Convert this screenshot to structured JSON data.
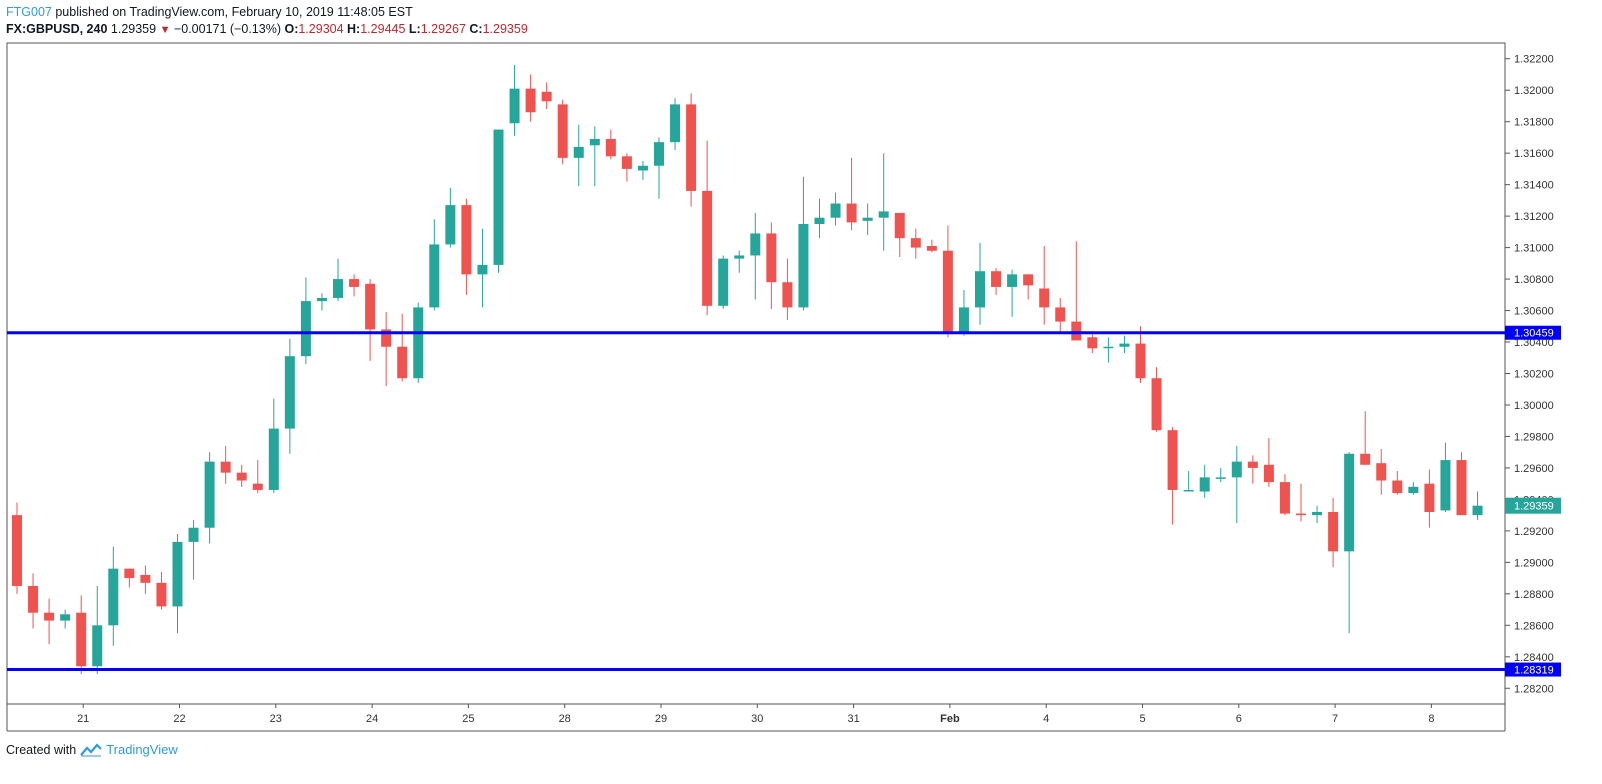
{
  "header": {
    "author": "FTG007",
    "published": "published on TradingView.com, February 10, 2019 11:48:05 EST",
    "symbol": "FX:GBPUSD, 240",
    "last": "1.29359",
    "change_arrow": "▼",
    "change": "−0.00171 (−0.13%)",
    "o_label": "O:",
    "o_value": "1.29304",
    "h_label": "H:",
    "h_value": "1.29445",
    "l_label": "L:",
    "l_value": "1.29267",
    "c_label": "C:",
    "c_value": "1.29359"
  },
  "footer": {
    "created_with": "Created with",
    "brand": "TradingView"
  },
  "colors": {
    "up": "#26a69a",
    "down": "#ef5350",
    "hline": "#0000ff",
    "axis": "#555555"
  },
  "chart_data": {
    "type": "candlestick",
    "ylim": [
      1.281,
      1.323
    ],
    "y_ticks": [
      "1.28200",
      "1.28400",
      "1.28600",
      "1.28800",
      "1.29000",
      "1.29200",
      "1.29400",
      "1.29600",
      "1.29800",
      "1.30000",
      "1.30200",
      "1.30400",
      "1.30600",
      "1.30800",
      "1.31000",
      "1.31200",
      "1.31400",
      "1.31600",
      "1.31800",
      "1.32000",
      "1.32200"
    ],
    "x_labels": [
      "21",
      "22",
      "23",
      "24",
      "25",
      "28",
      "29",
      "30",
      "31",
      "Feb",
      "4",
      "5",
      "6",
      "7",
      "8"
    ],
    "x_label_bar_index": [
      4,
      10,
      16,
      22,
      28,
      34,
      40,
      46,
      52,
      58,
      64,
      70,
      76,
      82,
      88
    ],
    "horizontal_lines": [
      {
        "value": 1.30459,
        "label": "1.30459"
      },
      {
        "value": 1.28319,
        "label": "1.28319"
      }
    ],
    "last_price_label": "1.29359",
    "candles": [
      [
        1.293,
        1.2938,
        1.288,
        1.2885
      ],
      [
        1.2885,
        1.2893,
        1.2858,
        1.2868
      ],
      [
        1.2868,
        1.2877,
        1.2848,
        1.2863
      ],
      [
        1.2863,
        1.287,
        1.2858,
        1.2867
      ],
      [
        1.2868,
        1.2879,
        1.2829,
        1.2834
      ],
      [
        1.2834,
        1.2885,
        1.2829,
        1.286
      ],
      [
        1.286,
        1.291,
        1.2847,
        1.2896
      ],
      [
        1.2896,
        1.2896,
        1.2884,
        1.289
      ],
      [
        1.2892,
        1.2898,
        1.288,
        1.2887
      ],
      [
        1.2887,
        1.2894,
        1.287,
        1.2872
      ],
      [
        1.2872,
        1.2918,
        1.2855,
        1.2913
      ],
      [
        1.2913,
        1.2927,
        1.2889,
        1.2922
      ],
      [
        1.2922,
        1.297,
        1.2912,
        1.2964
      ],
      [
        1.2964,
        1.2974,
        1.295,
        1.2957
      ],
      [
        1.2957,
        1.2962,
        1.2948,
        1.2952
      ],
      [
        1.295,
        1.2965,
        1.2944,
        1.2946
      ],
      [
        1.2946,
        1.3004,
        1.2944,
        1.2985
      ],
      [
        1.2985,
        1.3042,
        1.2969,
        1.3031
      ],
      [
        1.3031,
        1.3081,
        1.3026,
        1.3066
      ],
      [
        1.3066,
        1.3071,
        1.306,
        1.3068
      ],
      [
        1.3068,
        1.3093,
        1.3066,
        1.308
      ],
      [
        1.308,
        1.3083,
        1.3069,
        1.3075
      ],
      [
        1.3077,
        1.308,
        1.3028,
        1.3048
      ],
      [
        1.3048,
        1.3059,
        1.3012,
        1.3037
      ],
      [
        1.3037,
        1.3058,
        1.3015,
        1.3017
      ],
      [
        1.3017,
        1.3065,
        1.3014,
        1.3062
      ],
      [
        1.3062,
        1.3118,
        1.306,
        1.3102
      ],
      [
        1.3102,
        1.3138,
        1.31,
        1.3127
      ],
      [
        1.3127,
        1.3131,
        1.307,
        1.3083
      ],
      [
        1.3083,
        1.3112,
        1.3062,
        1.3089
      ],
      [
        1.3089,
        1.3175,
        1.3084,
        1.3175
      ],
      [
        1.3179,
        1.3216,
        1.3171,
        1.3201
      ],
      [
        1.3201,
        1.321,
        1.318,
        1.3186
      ],
      [
        1.3199,
        1.3205,
        1.3188,
        1.3193
      ],
      [
        1.3191,
        1.3194,
        1.3153,
        1.3157
      ],
      [
        1.3157,
        1.3178,
        1.3139,
        1.3164
      ],
      [
        1.3165,
        1.3177,
        1.3139,
        1.3169
      ],
      [
        1.3169,
        1.3175,
        1.3156,
        1.3158
      ],
      [
        1.3158,
        1.316,
        1.3142,
        1.315
      ],
      [
        1.3149,
        1.3155,
        1.3143,
        1.3152
      ],
      [
        1.3152,
        1.317,
        1.3131,
        1.3167
      ],
      [
        1.3167,
        1.3195,
        1.3162,
        1.3191
      ],
      [
        1.3191,
        1.3198,
        1.3126,
        1.3136
      ],
      [
        1.3136,
        1.3168,
        1.3057,
        1.3063
      ],
      [
        1.3063,
        1.3095,
        1.3061,
        1.3093
      ],
      [
        1.3093,
        1.3098,
        1.3084,
        1.3095
      ],
      [
        1.3095,
        1.3122,
        1.3067,
        1.3109
      ],
      [
        1.3109,
        1.3116,
        1.3061,
        1.3078
      ],
      [
        1.3078,
        1.3093,
        1.3054,
        1.3062
      ],
      [
        1.3062,
        1.3145,
        1.306,
        1.3115
      ],
      [
        1.3115,
        1.3131,
        1.3106,
        1.3119
      ],
      [
        1.3119,
        1.3135,
        1.3114,
        1.3128
      ],
      [
        1.3128,
        1.3157,
        1.3111,
        1.3116
      ],
      [
        1.3117,
        1.3128,
        1.3108,
        1.3119
      ],
      [
        1.3119,
        1.316,
        1.3098,
        1.3123
      ],
      [
        1.3122,
        1.3122,
        1.3094,
        1.3106
      ],
      [
        1.3106,
        1.3112,
        1.3093,
        1.31
      ],
      [
        1.3101,
        1.3105,
        1.3097,
        1.3098
      ],
      [
        1.3098,
        1.3114,
        1.3043,
        1.3045
      ],
      [
        1.3045,
        1.3073,
        1.3044,
        1.3062
      ],
      [
        1.3062,
        1.3103,
        1.3051,
        1.3085
      ],
      [
        1.3085,
        1.3087,
        1.307,
        1.3075
      ],
      [
        1.3075,
        1.3086,
        1.3056,
        1.3083
      ],
      [
        1.3083,
        1.3083,
        1.3067,
        1.3076
      ],
      [
        1.3074,
        1.3101,
        1.3051,
        1.3062
      ],
      [
        1.3062,
        1.3068,
        1.3046,
        1.3053
      ],
      [
        1.3053,
        1.3104,
        1.3043,
        1.3041
      ],
      [
        1.3043,
        1.3047,
        1.3033,
        1.3036
      ],
      [
        1.3037,
        1.3043,
        1.3027,
        1.3037
      ],
      [
        1.3037,
        1.3044,
        1.3033,
        1.3039
      ],
      [
        1.3039,
        1.305,
        1.3014,
        1.3017
      ],
      [
        1.3017,
        1.3024,
        1.2983,
        1.2984
      ],
      [
        1.2984,
        1.2986,
        1.2924,
        1.2946
      ],
      [
        1.2946,
        1.2958,
        1.2946,
        1.2946
      ],
      [
        1.2945,
        1.2962,
        1.2941,
        1.2954
      ],
      [
        1.2954,
        1.296,
        1.2951,
        1.2954
      ],
      [
        1.2954,
        1.2974,
        1.2925,
        1.2964
      ],
      [
        1.2964,
        1.2968,
        1.295,
        1.296
      ],
      [
        1.2962,
        1.2979,
        1.2948,
        1.2951
      ],
      [
        1.2951,
        1.2956,
        1.293,
        1.2931
      ],
      [
        1.2931,
        1.295,
        1.2926,
        1.293
      ],
      [
        1.293,
        1.2936,
        1.2925,
        1.2932
      ],
      [
        1.2932,
        1.2941,
        1.2897,
        1.2907
      ],
      [
        1.2907,
        1.297,
        1.2855,
        1.2969
      ],
      [
        1.2969,
        1.2996,
        1.2962,
        1.2962
      ],
      [
        1.2963,
        1.2972,
        1.2943,
        1.2952
      ],
      [
        1.2952,
        1.2958,
        1.2943,
        1.2944
      ],
      [
        1.2944,
        1.2951,
        1.2943,
        1.2948
      ],
      [
        1.295,
        1.2959,
        1.2922,
        1.2932
      ],
      [
        1.2933,
        1.2976,
        1.2932,
        1.2965
      ],
      [
        1.2965,
        1.297,
        1.293,
        1.293
      ],
      [
        1.293,
        1.2945,
        1.2927,
        1.2936
      ]
    ]
  }
}
